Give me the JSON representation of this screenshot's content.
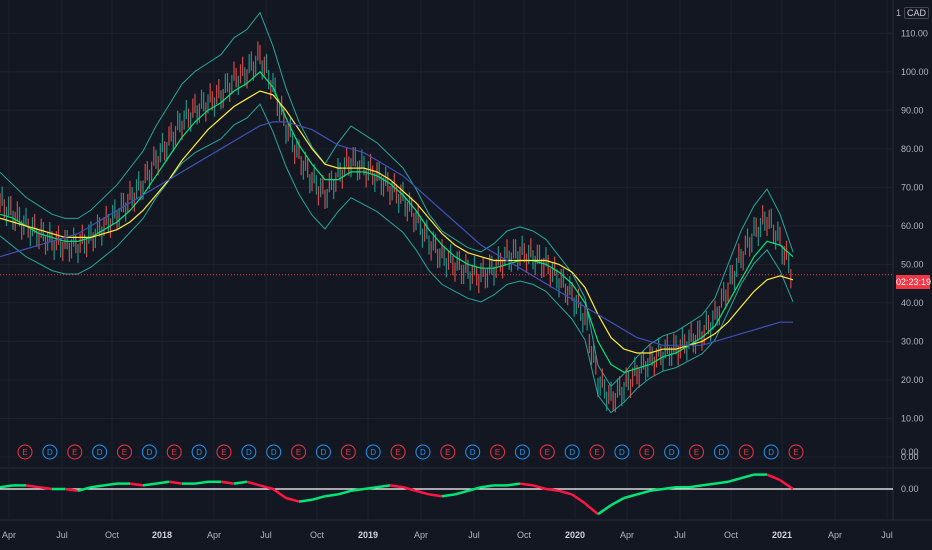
{
  "currency": {
    "scale": "1",
    "code": "CAD"
  },
  "last_price_time": "02:23:19",
  "colors": {
    "background": "#131722",
    "grid": "#1E222D",
    "bb": "#26A69A",
    "ema_fast": "#00E676",
    "ema_slow": "#FFEB3B",
    "ema_long": "#3F51B5",
    "price_line": "#F23645",
    "dividend": "#2196F3",
    "earnings": "#F23645",
    "osc_up": "#00E676",
    "osc_down": "#FF1744",
    "osc_zero": "#FFFFFF"
  },
  "chart_data": [
    {
      "type": "line",
      "name": "price",
      "y_axis_ticks": [
        "110.00",
        "100.00",
        "90.00",
        "80.00",
        "70.00",
        "60.00",
        "50.00",
        "40.00",
        "30.00",
        "20.00",
        "10.00",
        "0.00"
      ],
      "ylim": [
        0,
        115
      ],
      "x_labels": [
        "Apr",
        "Jul",
        "Oct",
        "2018",
        "Apr",
        "Jul",
        "Oct",
        "2019",
        "Apr",
        "Jul",
        "Oct",
        "2020",
        "Apr",
        "Jul",
        "Oct",
        "2021",
        "Apr",
        "Jul"
      ],
      "year_labels": [
        "2018",
        "2019",
        "2020",
        "2021"
      ],
      "price_marker": 47.3,
      "series": [
        {
          "key": "close",
          "values": [
            66,
            63,
            60,
            58,
            56,
            55,
            55,
            57,
            60,
            63,
            67,
            71,
            77,
            82,
            87,
            90,
            92,
            94,
            98,
            100,
            104,
            96,
            86,
            78,
            72,
            68,
            73,
            77,
            75,
            73,
            70,
            67,
            62,
            56,
            52,
            50,
            48,
            47,
            49,
            52,
            53,
            52,
            50,
            46,
            42,
            36,
            20,
            15,
            18,
            22,
            25,
            27,
            28,
            30,
            32,
            36,
            44,
            52,
            58,
            62,
            56,
            47
          ]
        },
        {
          "key": "ema_fast",
          "values": [
            63,
            62,
            60,
            58,
            57,
            56,
            56,
            57,
            59,
            61,
            64,
            68,
            73,
            78,
            83,
            87,
            90,
            92,
            95,
            97,
            100,
            96,
            88,
            81,
            76,
            72,
            72,
            74,
            74,
            73,
            71,
            68,
            64,
            59,
            55,
            52,
            50,
            49,
            49,
            50,
            51,
            51,
            50,
            48,
            45,
            40,
            30,
            24,
            22,
            23,
            24,
            26,
            27,
            29,
            31,
            34,
            40,
            46,
            52,
            56,
            55,
            52
          ]
        },
        {
          "key": "ema_slow",
          "values": [
            62,
            61,
            60,
            59,
            58,
            57,
            57,
            57,
            58,
            59,
            61,
            64,
            68,
            72,
            77,
            81,
            85,
            88,
            91,
            93,
            95,
            94,
            90,
            85,
            80,
            76,
            75,
            75,
            75,
            74,
            72,
            69,
            66,
            62,
            58,
            55,
            53,
            52,
            51,
            51,
            51,
            51,
            51,
            50,
            48,
            44,
            37,
            31,
            28,
            27,
            27,
            28,
            28,
            29,
            30,
            32,
            35,
            39,
            43,
            46,
            47,
            46
          ]
        },
        {
          "key": "ema_long",
          "values": [
            52,
            53,
            54,
            55,
            56,
            57,
            58,
            60,
            62,
            64,
            66,
            68,
            70,
            72,
            74,
            76,
            78,
            80,
            82,
            84,
            86,
            87,
            87,
            86,
            85,
            83,
            81,
            80,
            79,
            77,
            75,
            73,
            70,
            67,
            64,
            61,
            58,
            55,
            53,
            51,
            49,
            47,
            45,
            43,
            41,
            39,
            37,
            35,
            33,
            31,
            30,
            29,
            29,
            29,
            29,
            30,
            31,
            32,
            33,
            34,
            35,
            35
          ]
        }
      ]
    },
    {
      "type": "bar",
      "name": "events",
      "items": [
        "E",
        "D",
        "E",
        "D",
        "E",
        "D",
        "E",
        "D",
        "E",
        "D",
        "D",
        "E",
        "D",
        "E",
        "D",
        "E",
        "D",
        "E",
        "D",
        "E",
        "D",
        "E",
        "D",
        "E",
        "D",
        "E",
        "D",
        "E",
        "D",
        "E",
        "D",
        "E"
      ]
    },
    {
      "type": "line",
      "name": "oscillator",
      "y_axis_ticks": [
        "0.00"
      ],
      "values": [
        1,
        2,
        2,
        1,
        0,
        0,
        -1,
        1,
        2,
        3,
        3,
        2,
        3,
        4,
        3,
        3,
        4,
        4,
        3,
        4,
        2,
        0,
        -5,
        -7,
        -6,
        -4,
        -3,
        -1,
        0,
        1,
        2,
        1,
        -1,
        -3,
        -4,
        -3,
        -1,
        1,
        2,
        2,
        3,
        2,
        0,
        -1,
        -3,
        -8,
        -14,
        -9,
        -5,
        -3,
        -1,
        0,
        1,
        1,
        2,
        3,
        4,
        6,
        8,
        8,
        5,
        0
      ]
    }
  ]
}
